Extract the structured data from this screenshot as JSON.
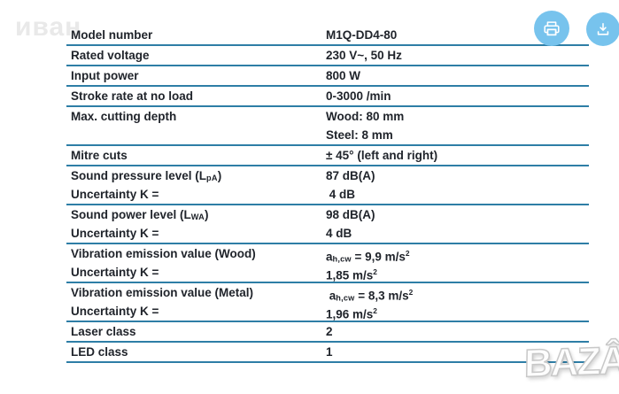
{
  "watermarks": {
    "top_left": "иван",
    "bottom_right": "BAZÂR"
  },
  "toolbar": {
    "buttons": [
      {
        "name": "print",
        "icon": "printer-icon"
      },
      {
        "name": "download",
        "icon": "download-icon"
      }
    ]
  },
  "colors": {
    "line": "#2e7ea6",
    "text": "#20242b",
    "button": "#77c3ed"
  },
  "table": {
    "rows": [
      {
        "label": [
          [
            {
              "t": "Model number"
            }
          ]
        ],
        "value": [
          [
            {
              "t": "M1Q-DD4-80"
            }
          ]
        ]
      },
      {
        "label": [
          [
            {
              "t": "Rated voltage"
            }
          ]
        ],
        "value": [
          [
            {
              "t": "230 V~, 50 Hz"
            }
          ]
        ]
      },
      {
        "label": [
          [
            {
              "t": "Input power"
            }
          ]
        ],
        "value": [
          [
            {
              "t": "800 W"
            }
          ]
        ]
      },
      {
        "label": [
          [
            {
              "t": "Stroke rate at no load"
            }
          ]
        ],
        "value": [
          [
            {
              "t": "0-3000 /min"
            }
          ]
        ]
      },
      {
        "label": [
          [
            {
              "t": "Max. cutting depth"
            }
          ]
        ],
        "value": [
          [
            {
              "t": "Wood: 80 mm"
            }
          ],
          [
            {
              "t": "Steel: 8 mm"
            }
          ]
        ]
      },
      {
        "label": [
          [
            {
              "t": "Mitre cuts"
            }
          ]
        ],
        "value": [
          [
            {
              "t": "± 45° (left and right)"
            }
          ]
        ]
      },
      {
        "label": [
          [
            {
              "t": "Sound pressure level (L"
            },
            {
              "t": "pA",
              "sub": true
            },
            {
              "t": ")"
            }
          ],
          [
            {
              "t": "Uncertainty K ="
            }
          ]
        ],
        "value": [
          [
            {
              "t": "87 dB(A)"
            }
          ],
          [
            {
              "t": " 4 dB"
            }
          ]
        ]
      },
      {
        "label": [
          [
            {
              "t": "Sound power level (L"
            },
            {
              "t": "WA",
              "sub": true
            },
            {
              "t": ")"
            }
          ],
          [
            {
              "t": "Uncertainty K ="
            }
          ]
        ],
        "value": [
          [
            {
              "t": "98 dB(A)"
            }
          ],
          [
            {
              "t": "4 dB"
            }
          ]
        ]
      },
      {
        "label": [
          [
            {
              "t": "Vibration emission value (Wood)"
            }
          ],
          [
            {
              "t": "Uncertainty K ="
            }
          ]
        ],
        "value": [
          [
            {
              "t": "a"
            },
            {
              "t": "h,cw",
              "sub": true
            },
            {
              "t": " = 9,9 m/s"
            },
            {
              "t": "2",
              "sup": true
            }
          ],
          [
            {
              "t": "1,85 m/s"
            },
            {
              "t": "2",
              "sup": true
            }
          ]
        ]
      },
      {
        "label": [
          [
            {
              "t": "Vibration emission value (Metal)"
            }
          ],
          [
            {
              "t": "Uncertainty K ="
            }
          ]
        ],
        "value": [
          [
            {
              "t": " a"
            },
            {
              "t": "h,cw",
              "sub": true
            },
            {
              "t": " = 8,3 m/s"
            },
            {
              "t": "2",
              "sup": true
            }
          ],
          [
            {
              "t": "1,96 m/s"
            },
            {
              "t": "2",
              "sup": true
            }
          ]
        ]
      },
      {
        "label": [
          [
            {
              "t": "Laser class"
            }
          ]
        ],
        "value": [
          [
            {
              "t": "2"
            }
          ]
        ]
      },
      {
        "label": [
          [
            {
              "t": "LED class"
            }
          ]
        ],
        "value": [
          [
            {
              "t": "1"
            }
          ]
        ]
      }
    ]
  }
}
